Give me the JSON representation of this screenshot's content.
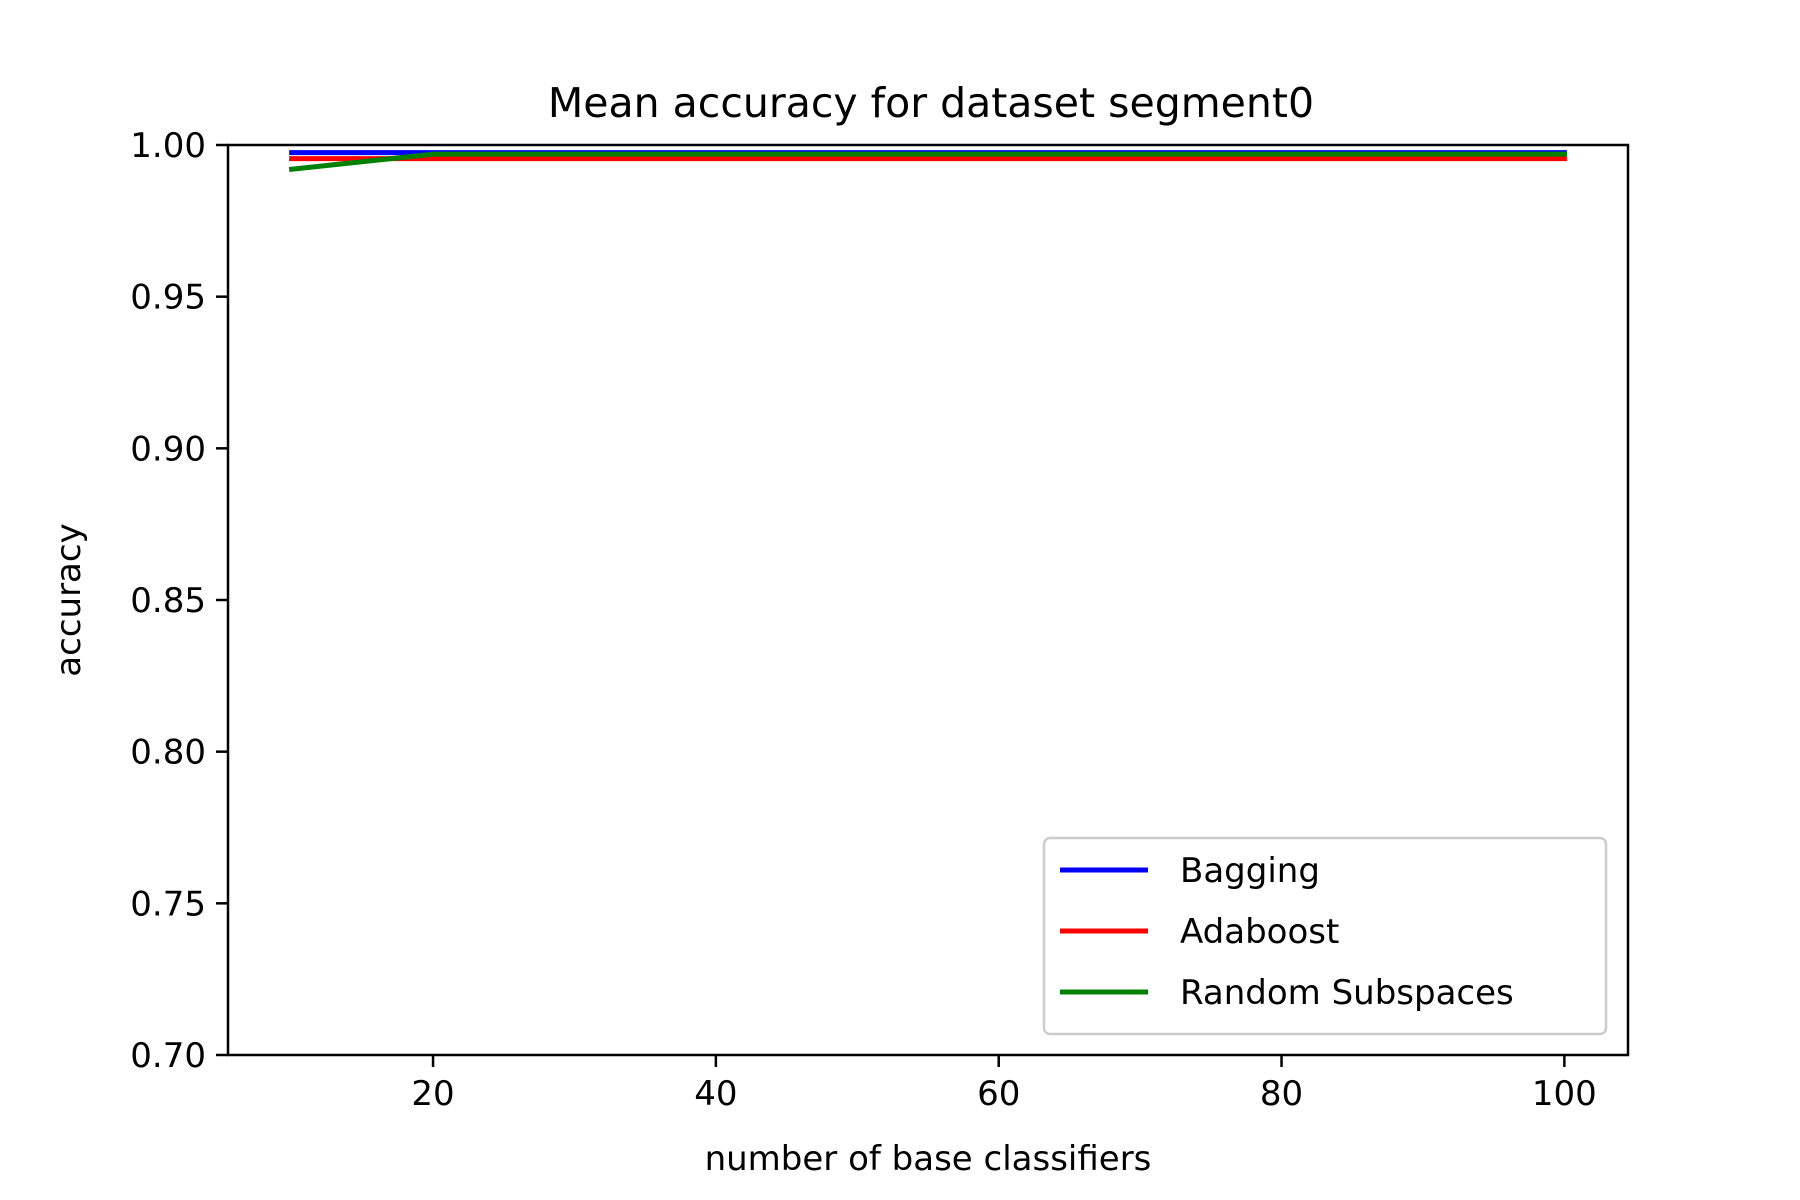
{
  "chart_data": {
    "type": "line",
    "title": "Mean accuracy for dataset segment0",
    "xlabel": "number of base classifiers",
    "ylabel": "accuracy",
    "xlim": [
      5.5,
      104.5
    ],
    "ylim": [
      0.7,
      1.0
    ],
    "xticks": [
      20,
      40,
      60,
      80,
      100
    ],
    "xtick_labels": [
      "20",
      "40",
      "60",
      "80",
      "100"
    ],
    "yticks": [
      0.7,
      0.75,
      0.8,
      0.85,
      0.9,
      0.95,
      1.0
    ],
    "ytick_labels": [
      "0.70",
      "0.75",
      "0.80",
      "0.85",
      "0.90",
      "0.95",
      "1.00"
    ],
    "grid": false,
    "legend_position": "lower-right",
    "x": [
      10,
      20,
      30,
      40,
      50,
      60,
      70,
      80,
      90,
      100
    ],
    "series": [
      {
        "name": "Bagging",
        "color": "#0000ff",
        "values": [
          0.9975,
          0.9975,
          0.9975,
          0.9975,
          0.9975,
          0.9975,
          0.9975,
          0.9975,
          0.9975,
          0.9975
        ]
      },
      {
        "name": "Adaboost",
        "color": "#ff0000",
        "values": [
          0.9955,
          0.9955,
          0.9955,
          0.9955,
          0.9955,
          0.9955,
          0.9955,
          0.9955,
          0.9955,
          0.9955
        ]
      },
      {
        "name": "Random Subspaces",
        "color": "#008000",
        "values": [
          0.992,
          0.997,
          0.997,
          0.997,
          0.997,
          0.997,
          0.997,
          0.997,
          0.997,
          0.997
        ]
      }
    ]
  }
}
